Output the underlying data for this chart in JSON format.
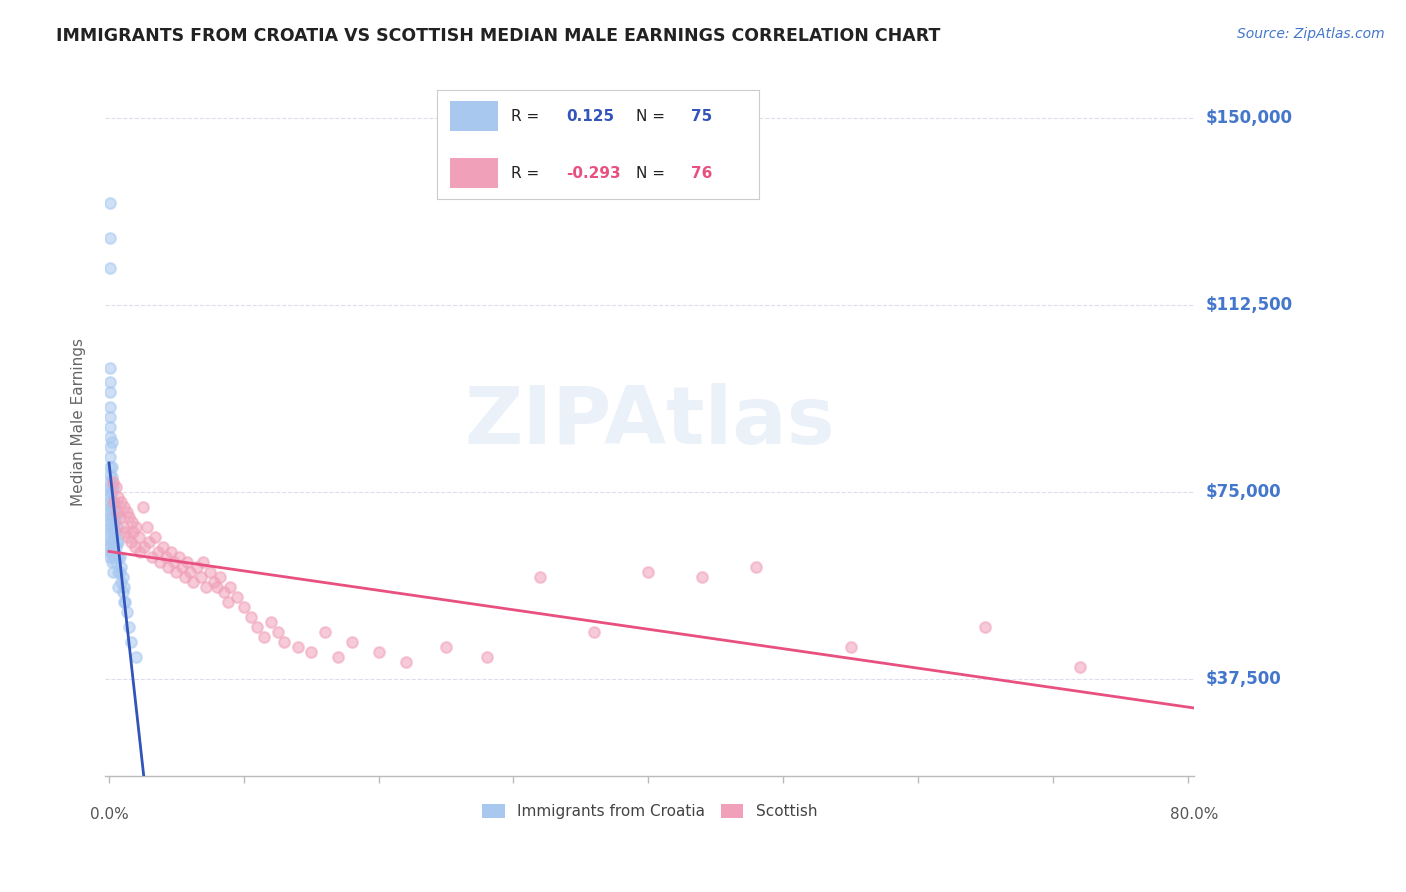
{
  "title": "IMMIGRANTS FROM CROATIA VS SCOTTISH MEDIAN MALE EARNINGS CORRELATION CHART",
  "source": "Source: ZipAtlas.com",
  "ylabel": "Median Male Earnings",
  "ytick_labels": [
    "$150,000",
    "$112,500",
    "$75,000",
    "$37,500"
  ],
  "ytick_values": [
    150000,
    112500,
    75000,
    37500
  ],
  "ymin": 18000,
  "ymax": 160000,
  "xmin": -0.003,
  "xmax": 0.805,
  "blue_R": "0.125",
  "blue_N": "75",
  "pink_R": "-0.293",
  "pink_N": "76",
  "blue_color": "#a8c8f0",
  "pink_color": "#f0a0b8",
  "blue_line_color": "#3355bb",
  "pink_line_color": "#e85080",
  "dashed_line_color": "#aabbdd",
  "background_color": "#ffffff",
  "grid_color": "#ddddee",
  "title_color": "#222222",
  "source_color": "#4477cc",
  "ylabel_color": "#666666",
  "ytick_color": "#4477cc",
  "legend_label_blue": "Immigrants from Croatia",
  "legend_label_pink": "Scottish",
  "blue_scatter_x": [
    0.001,
    0.001,
    0.001,
    0.001,
    0.001,
    0.001,
    0.001,
    0.001,
    0.001,
    0.001,
    0.001,
    0.001,
    0.001,
    0.001,
    0.001,
    0.001,
    0.001,
    0.001,
    0.001,
    0.001,
    0.001,
    0.001,
    0.001,
    0.001,
    0.001,
    0.001,
    0.001,
    0.001,
    0.001,
    0.001,
    0.002,
    0.002,
    0.002,
    0.002,
    0.002,
    0.002,
    0.002,
    0.002,
    0.002,
    0.002,
    0.003,
    0.003,
    0.003,
    0.003,
    0.003,
    0.003,
    0.003,
    0.004,
    0.004,
    0.004,
    0.004,
    0.005,
    0.005,
    0.005,
    0.005,
    0.006,
    0.006,
    0.006,
    0.007,
    0.007,
    0.007,
    0.007,
    0.008,
    0.008,
    0.009,
    0.009,
    0.01,
    0.01,
    0.011,
    0.011,
    0.012,
    0.013,
    0.015,
    0.016,
    0.02
  ],
  "blue_scatter_y": [
    133000,
    126000,
    120000,
    100000,
    97000,
    95000,
    92000,
    90000,
    88000,
    86000,
    84000,
    82000,
    80000,
    78500,
    77000,
    76000,
    75000,
    74000,
    73000,
    72000,
    71000,
    70000,
    69000,
    68000,
    67000,
    66000,
    65000,
    64000,
    63000,
    62000,
    85000,
    80000,
    78000,
    75000,
    72000,
    70000,
    68000,
    65000,
    63000,
    61000,
    76000,
    73000,
    70000,
    67000,
    64000,
    62000,
    59000,
    72000,
    69000,
    66000,
    63000,
    70000,
    67000,
    64000,
    61000,
    68000,
    65000,
    62000,
    65000,
    62000,
    59000,
    56000,
    62000,
    59000,
    60000,
    57000,
    58000,
    55000,
    56000,
    53000,
    53000,
    51000,
    48000,
    45000,
    42000
  ],
  "pink_scatter_x": [
    0.003,
    0.004,
    0.005,
    0.006,
    0.007,
    0.008,
    0.009,
    0.01,
    0.011,
    0.012,
    0.013,
    0.014,
    0.015,
    0.016,
    0.017,
    0.018,
    0.019,
    0.02,
    0.022,
    0.023,
    0.025,
    0.026,
    0.028,
    0.03,
    0.032,
    0.034,
    0.036,
    0.038,
    0.04,
    0.042,
    0.044,
    0.046,
    0.048,
    0.05,
    0.052,
    0.054,
    0.056,
    0.058,
    0.06,
    0.062,
    0.065,
    0.068,
    0.07,
    0.072,
    0.075,
    0.078,
    0.08,
    0.082,
    0.085,
    0.088,
    0.09,
    0.095,
    0.1,
    0.105,
    0.11,
    0.115,
    0.12,
    0.125,
    0.13,
    0.14,
    0.15,
    0.16,
    0.17,
    0.18,
    0.2,
    0.22,
    0.25,
    0.28,
    0.32,
    0.36,
    0.4,
    0.44,
    0.48,
    0.55,
    0.65,
    0.72
  ],
  "pink_scatter_y": [
    77000,
    73000,
    76000,
    71000,
    74000,
    70000,
    73000,
    68000,
    72000,
    67000,
    71000,
    66000,
    70000,
    65000,
    69000,
    67000,
    64000,
    68000,
    66000,
    63000,
    72000,
    64000,
    68000,
    65000,
    62000,
    66000,
    63000,
    61000,
    64000,
    62000,
    60000,
    63000,
    61000,
    59000,
    62000,
    60000,
    58000,
    61000,
    59000,
    57000,
    60000,
    58000,
    61000,
    56000,
    59000,
    57000,
    56000,
    58000,
    55000,
    53000,
    56000,
    54000,
    52000,
    50000,
    48000,
    46000,
    49000,
    47000,
    45000,
    44000,
    43000,
    47000,
    42000,
    45000,
    43000,
    41000,
    44000,
    42000,
    58000,
    47000,
    59000,
    58000,
    60000,
    44000,
    48000,
    40000
  ]
}
